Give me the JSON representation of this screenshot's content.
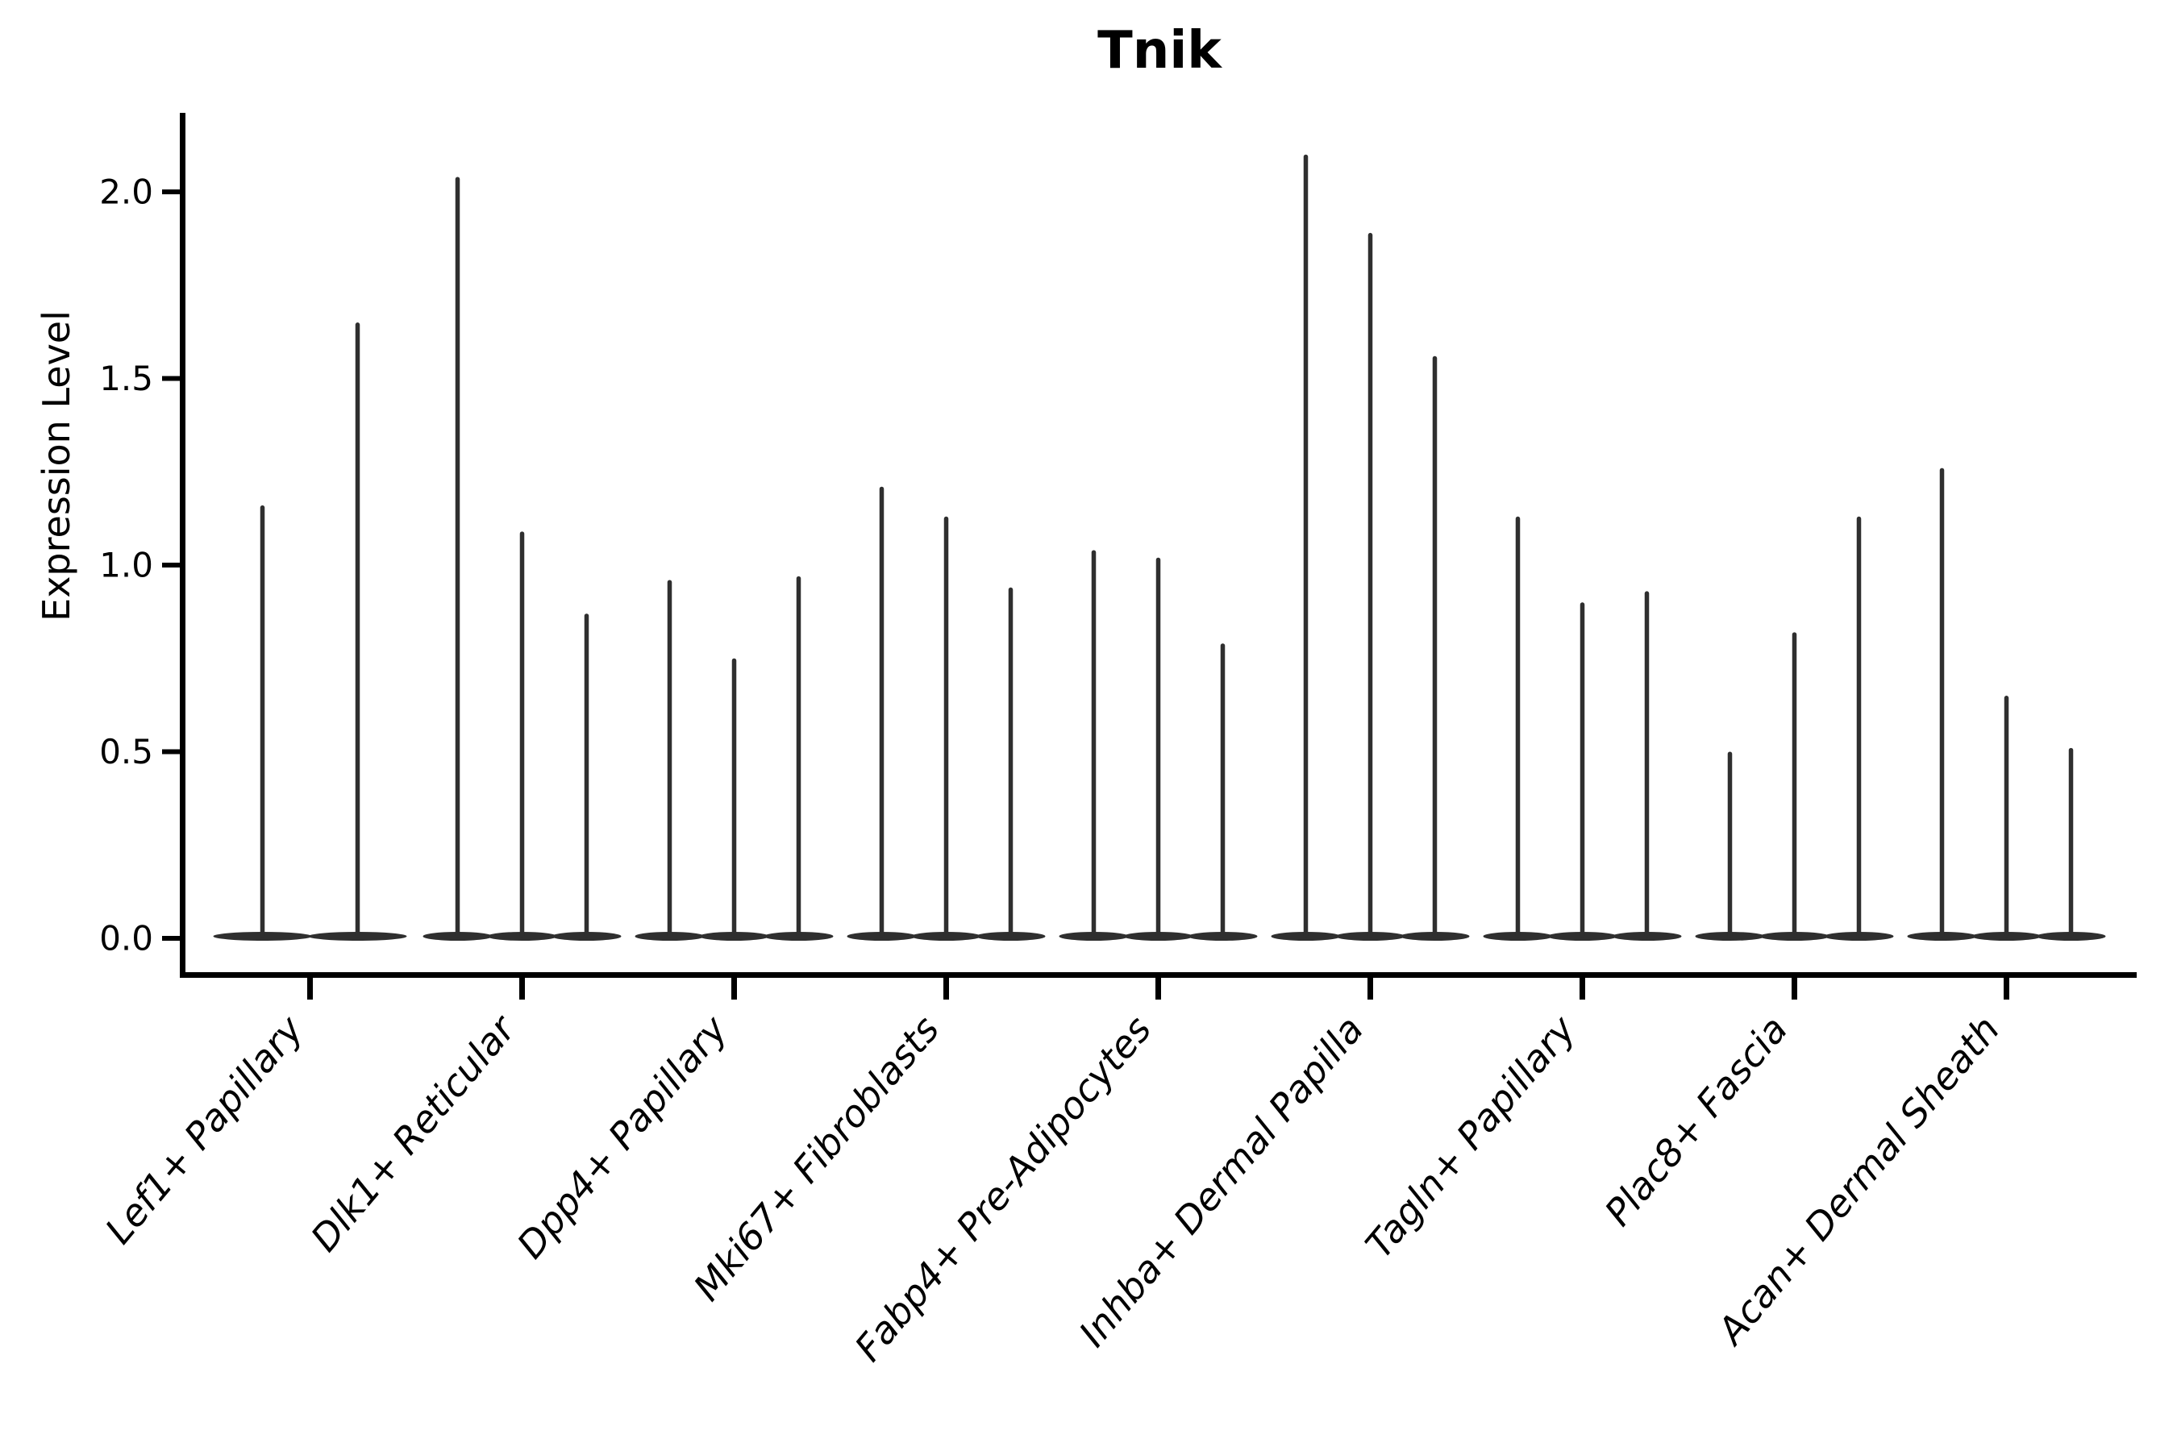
{
  "chart_data": {
    "type": "violin",
    "title": "Tnik",
    "xlabel": "",
    "ylabel": "Expression Level",
    "ylim": [
      -0.11,
      2.21
    ],
    "grid": false,
    "legend": "none",
    "background_color": "#ffffff",
    "violin_color": "#2f2f2f",
    "axis_color": "#000000",
    "x_tick_label_rotation_deg": 50,
    "x_tick_label_style": "italic",
    "yticks": [
      {
        "label": "0.0",
        "value": 0.0
      },
      {
        "label": "0.5",
        "value": 0.5
      },
      {
        "label": "1.0",
        "value": 1.0
      },
      {
        "label": "1.5",
        "value": 1.5
      },
      {
        "label": "2.0",
        "value": 2.0
      }
    ],
    "description": "Violin plot of Tnik expression; each category shows very thin violins (bulk of cells at 0) whose upper tails reach the listed maxima.",
    "categories": [
      {
        "label": "Lef1+ Papillary",
        "violin_maxima": [
          1.16,
          1.65
        ]
      },
      {
        "label": "Dlk1+ Reticular",
        "violin_maxima": [
          2.04,
          1.09,
          0.87
        ]
      },
      {
        "label": "Dpp4+ Papillary",
        "violin_maxima": [
          0.96,
          0.75,
          0.97
        ]
      },
      {
        "label": "Mki67+ Fibroblasts",
        "violin_maxima": [
          1.21,
          1.13,
          0.94
        ]
      },
      {
        "label": "Fabp4+ Pre-Adipocytes",
        "violin_maxima": [
          1.04,
          1.02,
          0.79
        ]
      },
      {
        "label": "Inhba+ Dermal Papilla",
        "violin_maxima": [
          2.1,
          1.89,
          1.56
        ]
      },
      {
        "label": "Tagln+ Papillary",
        "violin_maxima": [
          1.13,
          0.9,
          0.93
        ]
      },
      {
        "label": "Plac8+ Fascia",
        "violin_maxima": [
          0.5,
          0.82,
          1.13
        ]
      },
      {
        "label": "Acan+ Dermal Sheath",
        "violin_maxima": [
          1.26,
          0.65,
          0.51
        ]
      }
    ]
  }
}
